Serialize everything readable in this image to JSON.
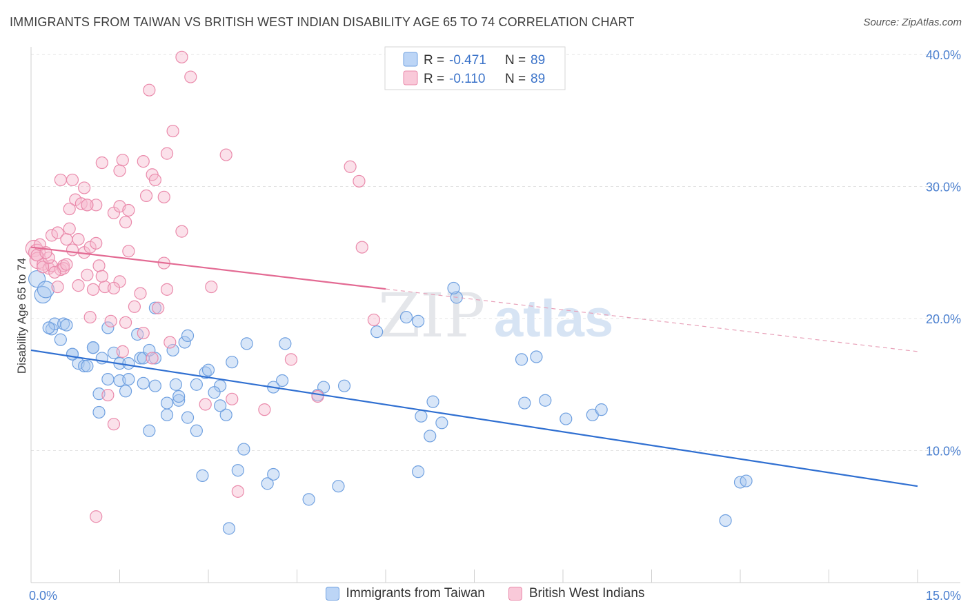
{
  "header": {
    "title": "IMMIGRANTS FROM TAIWAN VS BRITISH WEST INDIAN DISABILITY AGE 65 TO 74 CORRELATION CHART",
    "source": "Source: ZipAtlas.com"
  },
  "watermark": {
    "zip": "ZIP",
    "atlas": "atlas"
  },
  "legend": {
    "r_label": "R =",
    "n_label": "N =",
    "items": [
      {
        "r": "-0.471",
        "n": "89"
      },
      {
        "r": "-0.110",
        "n": "89"
      }
    ]
  },
  "chart_data": {
    "type": "scatter",
    "title": "IMMIGRANTS FROM TAIWAN VS BRITISH WEST INDIAN DISABILITY AGE 65 TO 74 CORRELATION CHART",
    "xlabel": "",
    "ylabel": "Disability Age 65 to 74",
    "xlim": [
      0,
      15
    ],
    "ylim": [
      0,
      40
    ],
    "x_tick_labels": [
      "0.0%",
      "15.0%"
    ],
    "y_ticks": [
      10,
      20,
      30,
      40
    ],
    "y_tick_labels": [
      "10.0%",
      "20.0%",
      "30.0%",
      "40.0%"
    ],
    "grid": true,
    "legend_position": "top-center",
    "series": [
      {
        "name": "Immigrants from Taiwan",
        "color": "#6fa0e0",
        "fill": "#a9c7f0",
        "R": -0.471,
        "N": 89,
        "trend": {
          "x0": 0,
          "y0": 17.6,
          "x1": 15,
          "y1": 7.3
        },
        "points": [
          [
            0.1,
            23.0
          ],
          [
            0.2,
            21.8
          ],
          [
            0.25,
            22.2
          ],
          [
            0.35,
            19.2
          ],
          [
            0.4,
            19.6
          ],
          [
            0.55,
            19.6
          ],
          [
            0.5,
            18.4
          ],
          [
            0.7,
            17.3
          ],
          [
            0.8,
            16.6
          ],
          [
            0.9,
            16.4
          ],
          [
            1.05,
            17.8
          ],
          [
            1.2,
            17.0
          ],
          [
            1.4,
            17.4
          ],
          [
            1.3,
            19.3
          ],
          [
            1.5,
            16.6
          ],
          [
            1.85,
            17.0
          ],
          [
            1.9,
            17.0
          ],
          [
            2.1,
            17.0
          ],
          [
            2.4,
            17.6
          ],
          [
            2.6,
            18.2
          ],
          [
            2.65,
            18.7
          ],
          [
            1.3,
            15.4
          ],
          [
            1.5,
            15.3
          ],
          [
            1.65,
            15.4
          ],
          [
            1.9,
            15.1
          ],
          [
            2.1,
            14.9
          ],
          [
            2.45,
            15.0
          ],
          [
            2.8,
            15.0
          ],
          [
            2.95,
            15.9
          ],
          [
            3.0,
            16.1
          ],
          [
            3.4,
            16.7
          ],
          [
            3.2,
            14.9
          ],
          [
            3.1,
            14.4
          ],
          [
            2.5,
            13.8
          ],
          [
            2.3,
            13.6
          ],
          [
            2.3,
            12.7
          ],
          [
            1.15,
            12.9
          ],
          [
            1.15,
            14.3
          ],
          [
            1.6,
            14.5
          ],
          [
            2.65,
            12.5
          ],
          [
            2.0,
            11.5
          ],
          [
            2.8,
            11.5
          ],
          [
            3.3,
            12.7
          ],
          [
            3.6,
            10.1
          ],
          [
            3.5,
            8.5
          ],
          [
            2.9,
            8.1
          ],
          [
            3.35,
            4.1
          ],
          [
            4.0,
            7.5
          ],
          [
            4.1,
            8.2
          ],
          [
            3.65,
            18.1
          ],
          [
            4.3,
            18.1
          ],
          [
            4.25,
            15.3
          ],
          [
            4.1,
            14.8
          ],
          [
            4.95,
            14.8
          ],
          [
            4.85,
            14.2
          ],
          [
            5.3,
            14.9
          ],
          [
            4.7,
            6.3
          ],
          [
            5.2,
            7.3
          ],
          [
            5.85,
            19.0
          ],
          [
            6.35,
            20.1
          ],
          [
            6.55,
            19.8
          ],
          [
            6.55,
            8.4
          ],
          [
            6.6,
            12.6
          ],
          [
            6.8,
            13.7
          ],
          [
            6.75,
            11.1
          ],
          [
            6.95,
            12.1
          ],
          [
            7.2,
            21.6
          ],
          [
            7.15,
            22.3
          ],
          [
            8.3,
            16.9
          ],
          [
            8.55,
            17.1
          ],
          [
            8.35,
            13.6
          ],
          [
            8.7,
            13.8
          ],
          [
            9.05,
            12.4
          ],
          [
            9.5,
            12.7
          ],
          [
            9.65,
            13.1
          ],
          [
            12.0,
            7.6
          ],
          [
            12.1,
            7.7
          ],
          [
            11.75,
            4.7
          ],
          [
            0.7,
            17.3
          ],
          [
            0.95,
            16.4
          ],
          [
            0.3,
            19.3
          ],
          [
            0.6,
            19.5
          ],
          [
            1.05,
            17.8
          ],
          [
            2.1,
            20.8
          ],
          [
            1.8,
            18.8
          ],
          [
            2.0,
            17.6
          ],
          [
            1.65,
            16.6
          ],
          [
            2.5,
            14.1
          ],
          [
            3.2,
            13.4
          ]
        ]
      },
      {
        "name": "British West Indians",
        "color": "#ea8aab",
        "fill": "#f6bdd0",
        "R": -0.11,
        "N": 89,
        "trend": {
          "x0": 0,
          "y0": 25.4,
          "x1": 15,
          "y1": 17.5,
          "solid_until_x": 6.0
        },
        "points": [
          [
            0.05,
            25.3
          ],
          [
            0.1,
            25.0
          ],
          [
            0.12,
            24.4
          ],
          [
            0.2,
            24.1
          ],
          [
            0.3,
            23.8
          ],
          [
            0.35,
            24.0
          ],
          [
            0.5,
            23.7
          ],
          [
            0.55,
            24.0
          ],
          [
            0.35,
            26.3
          ],
          [
            0.45,
            26.5
          ],
          [
            0.6,
            26.0
          ],
          [
            0.65,
            26.8
          ],
          [
            0.8,
            26.0
          ],
          [
            0.7,
            25.2
          ],
          [
            0.9,
            25.0
          ],
          [
            1.0,
            25.4
          ],
          [
            1.1,
            25.7
          ],
          [
            1.15,
            24.0
          ],
          [
            0.95,
            23.3
          ],
          [
            1.05,
            22.2
          ],
          [
            1.25,
            22.4
          ],
          [
            0.55,
            23.8
          ],
          [
            0.45,
            22.4
          ],
          [
            0.5,
            30.5
          ],
          [
            0.7,
            30.5
          ],
          [
            0.9,
            29.9
          ],
          [
            0.75,
            29.0
          ],
          [
            0.65,
            28.3
          ],
          [
            0.85,
            28.7
          ],
          [
            0.95,
            28.6
          ],
          [
            1.1,
            28.6
          ],
          [
            1.2,
            31.8
          ],
          [
            1.5,
            31.2
          ],
          [
            1.55,
            32.0
          ],
          [
            1.4,
            28.0
          ],
          [
            1.5,
            28.5
          ],
          [
            1.6,
            27.3
          ],
          [
            1.65,
            28.2
          ],
          [
            1.9,
            31.9
          ],
          [
            2.05,
            30.9
          ],
          [
            2.1,
            30.5
          ],
          [
            1.95,
            29.3
          ],
          [
            2.25,
            29.2
          ],
          [
            2.0,
            37.3
          ],
          [
            2.3,
            32.5
          ],
          [
            2.4,
            34.2
          ],
          [
            2.55,
            39.8
          ],
          [
            2.7,
            38.3
          ],
          [
            3.3,
            32.4
          ],
          [
            2.55,
            26.6
          ],
          [
            1.65,
            25.1
          ],
          [
            1.5,
            22.8
          ],
          [
            1.4,
            22.3
          ],
          [
            1.85,
            21.9
          ],
          [
            2.15,
            20.8
          ],
          [
            1.6,
            19.7
          ],
          [
            1.35,
            19.8
          ],
          [
            1.0,
            20.1
          ],
          [
            1.55,
            17.5
          ],
          [
            1.3,
            14.2
          ],
          [
            1.4,
            12.0
          ],
          [
            1.1,
            5.0
          ],
          [
            2.25,
            24.2
          ],
          [
            2.3,
            22.2
          ],
          [
            2.35,
            18.2
          ],
          [
            1.9,
            18.9
          ],
          [
            3.05,
            22.4
          ],
          [
            2.95,
            13.5
          ],
          [
            3.4,
            13.9
          ],
          [
            3.5,
            6.9
          ],
          [
            3.95,
            13.1
          ],
          [
            4.4,
            16.9
          ],
          [
            4.85,
            14.1
          ],
          [
            5.4,
            31.5
          ],
          [
            5.55,
            30.4
          ],
          [
            5.6,
            25.4
          ],
          [
            5.8,
            19.9
          ],
          [
            0.1,
            24.8
          ],
          [
            0.2,
            23.9
          ],
          [
            0.3,
            24.6
          ],
          [
            0.4,
            23.5
          ],
          [
            0.6,
            24.1
          ],
          [
            0.8,
            22.5
          ],
          [
            1.2,
            23.2
          ],
          [
            0.95,
            28.6
          ],
          [
            0.15,
            25.6
          ],
          [
            0.25,
            25.0
          ],
          [
            1.75,
            20.9
          ],
          [
            2.05,
            17.0
          ]
        ]
      }
    ]
  },
  "bottom_legend": {
    "items": [
      {
        "label": "Immigrants from Taiwan",
        "fill": "#bcd5f6",
        "stroke": "#6fa0e0"
      },
      {
        "label": "British West Indians",
        "fill": "#f9c9d9",
        "stroke": "#ea8aab"
      }
    ]
  }
}
